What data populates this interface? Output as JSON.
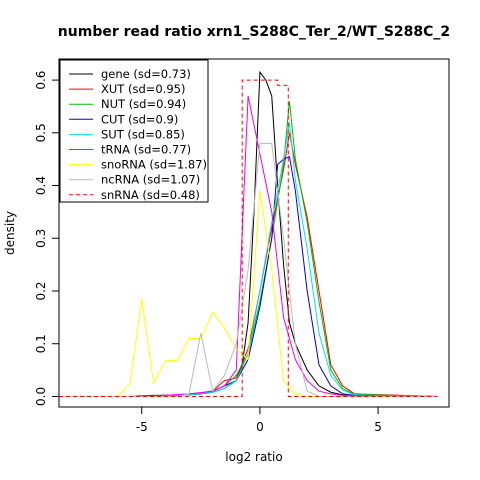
{
  "chart_data": {
    "type": "line",
    "title": "number read ratio xrn1_S288C_Ter_2/WT_S288C_2",
    "xlabel": "log2 ratio",
    "ylabel": "density",
    "xlim": [
      -8.5,
      8.0
    ],
    "ylim": [
      -0.02,
      0.64
    ],
    "xticks": [
      -5,
      0,
      5
    ],
    "xtick_labels": [
      "-5",
      "0",
      "5"
    ],
    "yticks": [
      0.0,
      0.1,
      0.2,
      0.3,
      0.4,
      0.5,
      0.6
    ],
    "ytick_labels": [
      "0.0",
      "0.1",
      "0.2",
      "0.3",
      "0.4",
      "0.5",
      "0.6"
    ],
    "grid": false,
    "legend_position": "top-left",
    "series": [
      {
        "name": "gene (sd=0.73)",
        "color": "#000000",
        "dash": "solid",
        "x": [
          -8.5,
          -5.5,
          -4.5,
          -3.0,
          -2.5,
          -2.0,
          -1.5,
          -1.0,
          -0.75,
          -0.5,
          -0.25,
          0.0,
          0.25,
          0.5,
          0.75,
          1.0,
          1.25,
          1.5,
          2.0,
          2.5,
          3.0,
          3.5,
          4.0,
          7.5
        ],
        "y": [
          0.0,
          0.0,
          0.002,
          0.003,
          0.005,
          0.008,
          0.015,
          0.03,
          0.06,
          0.14,
          0.35,
          0.615,
          0.6,
          0.57,
          0.4,
          0.25,
          0.14,
          0.1,
          0.05,
          0.02,
          0.008,
          0.003,
          0.001,
          0.0
        ]
      },
      {
        "name": "XUT (sd=0.95)",
        "color": "#ff0000",
        "dash": "solid",
        "x": [
          -8.5,
          -5.0,
          -3.0,
          -2.0,
          -1.5,
          -1.0,
          -0.5,
          0.0,
          0.5,
          1.0,
          1.25,
          1.5,
          2.0,
          2.5,
          3.0,
          3.5,
          4.0,
          7.5
        ],
        "y": [
          0.0,
          0.0,
          0.003,
          0.01,
          0.03,
          0.035,
          0.09,
          0.2,
          0.32,
          0.43,
          0.5,
          0.44,
          0.34,
          0.2,
          0.06,
          0.02,
          0.005,
          0.0
        ]
      },
      {
        "name": "NUT (sd=0.94)",
        "color": "#00bb00",
        "dash": "solid",
        "x": [
          -8.5,
          -5.0,
          -3.0,
          -2.0,
          -1.5,
          -1.0,
          -0.5,
          0.0,
          0.5,
          1.0,
          1.25,
          1.5,
          2.0,
          2.5,
          3.0,
          3.5,
          4.0,
          7.5
        ],
        "y": [
          0.0,
          0.0,
          0.003,
          0.01,
          0.02,
          0.04,
          0.08,
          0.18,
          0.3,
          0.44,
          0.56,
          0.45,
          0.33,
          0.18,
          0.05,
          0.015,
          0.004,
          0.0
        ]
      },
      {
        "name": "CUT (sd=0.9)",
        "color": "#0000cc",
        "dash": "solid",
        "x": [
          -8.5,
          -5.0,
          -3.0,
          -2.0,
          -1.5,
          -1.0,
          -0.5,
          0.0,
          0.5,
          0.75,
          1.0,
          1.25,
          1.5,
          2.0,
          2.5,
          3.0,
          3.5,
          4.0,
          7.5
        ],
        "y": [
          0.0,
          0.0,
          0.003,
          0.01,
          0.02,
          0.03,
          0.07,
          0.17,
          0.3,
          0.44,
          0.45,
          0.455,
          0.39,
          0.2,
          0.06,
          0.02,
          0.005,
          0.002,
          0.0
        ]
      },
      {
        "name": "SUT (sd=0.85)",
        "color": "#00e5e5",
        "dash": "solid",
        "x": [
          -8.5,
          -5.0,
          -3.0,
          -2.0,
          -1.5,
          -1.0,
          -0.5,
          0.0,
          0.5,
          1.0,
          1.25,
          1.5,
          2.0,
          2.5,
          3.0,
          3.5,
          4.0,
          7.5
        ],
        "y": [
          0.0,
          0.0,
          0.003,
          0.008,
          0.015,
          0.03,
          0.08,
          0.2,
          0.33,
          0.45,
          0.52,
          0.41,
          0.28,
          0.12,
          0.04,
          0.012,
          0.003,
          0.0
        ]
      },
      {
        "name": "tRNA (sd=0.77)",
        "color": "#ee00ee",
        "dash": "solid",
        "x": [
          -8.5,
          -5.0,
          -3.0,
          -2.0,
          -1.5,
          -1.0,
          -0.5,
          0.0,
          0.5,
          1.0,
          1.5,
          2.0,
          2.5,
          3.0,
          3.5,
          7.5
        ],
        "y": [
          0.0,
          0.0,
          0.005,
          0.01,
          0.02,
          0.05,
          0.57,
          0.46,
          0.35,
          0.15,
          0.07,
          0.03,
          0.01,
          0.005,
          0.002,
          0.0
        ]
      },
      {
        "name": "snoRNA (sd=1.87)",
        "color": "#ffff00",
        "dash": "solid",
        "x": [
          -8.5,
          -6.0,
          -5.5,
          -5.0,
          -4.5,
          -4.0,
          -3.5,
          -3.0,
          -2.5,
          -2.0,
          -1.5,
          -1.0,
          -0.5,
          0.0,
          0.5,
          1.0,
          1.5,
          2.0,
          7.5
        ],
        "y": [
          0.0,
          0.0,
          0.025,
          0.185,
          0.025,
          0.068,
          0.068,
          0.11,
          0.11,
          0.16,
          0.13,
          0.09,
          0.07,
          0.39,
          0.24,
          0.03,
          0.005,
          0.0,
          0.0
        ]
      },
      {
        "name": "ncRNA (sd=1.07)",
        "color": "#bbbbbb",
        "dash": "solid",
        "x": [
          -8.5,
          -3.5,
          -3.0,
          -2.5,
          -2.0,
          -1.5,
          -1.0,
          -0.5,
          0.0,
          0.25,
          0.5,
          1.0,
          1.5,
          2.0,
          2.5,
          7.5
        ],
        "y": [
          0.0,
          0.0,
          0.005,
          0.12,
          0.01,
          0.04,
          0.1,
          0.24,
          0.48,
          0.48,
          0.48,
          0.3,
          0.1,
          0.01,
          0.0,
          0.0
        ]
      },
      {
        "name": "snRNA (sd=0.48)",
        "color": "#ff0000",
        "dash": "dashed",
        "x": [
          -8.5,
          -0.9,
          -0.75,
          -0.75,
          0.75,
          0.75,
          1.2,
          1.2,
          7.5
        ],
        "y": [
          0.0,
          0.0,
          0.0,
          0.6,
          0.6,
          0.59,
          0.59,
          0.0,
          0.0
        ]
      }
    ]
  }
}
